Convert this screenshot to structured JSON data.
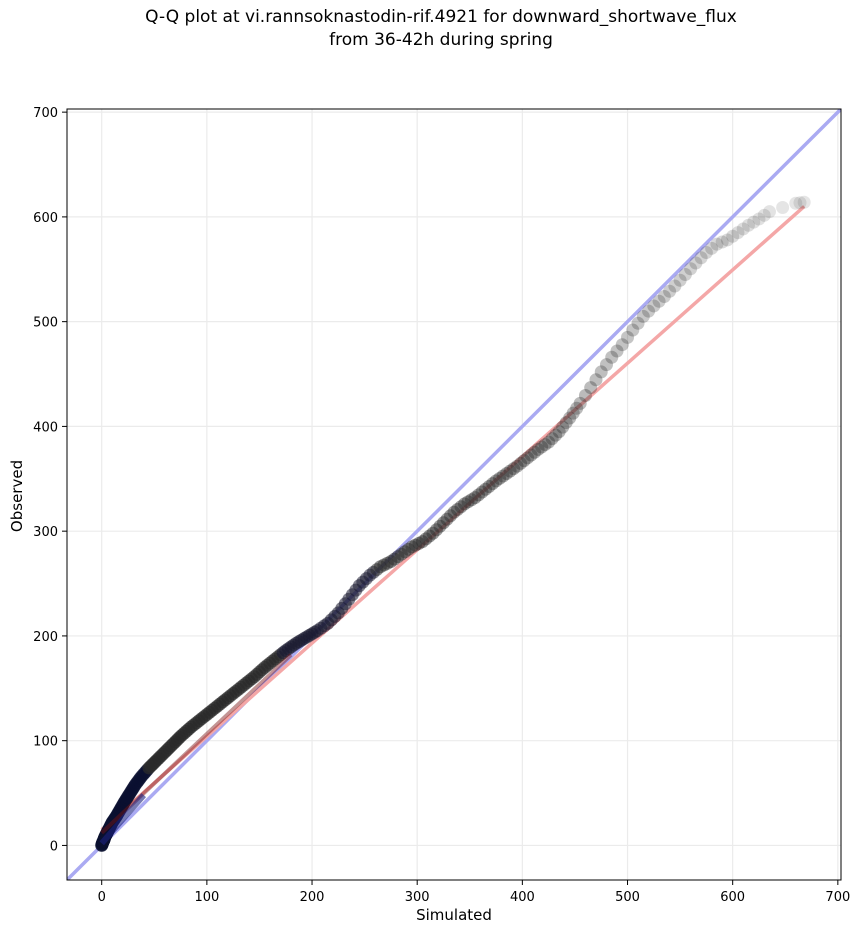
{
  "title_lines": [
    "Q-Q plot at vi.rannsoknastodin-rif.4921 for downward_shortwave_flux",
    "from 36-42h during spring"
  ],
  "colors": {
    "identity_line": "#aaaaf2",
    "fit_line": "#f4a7a7",
    "points_fill": "#2a2a2a",
    "grid": "#ebebeb"
  },
  "chart_data": {
    "type": "scatter",
    "xlabel": "Simulated",
    "ylabel": "Observed",
    "xlim": [
      -33,
      703
    ],
    "ylim": [
      -33,
      703
    ],
    "x_ticks": [
      0,
      100,
      200,
      300,
      400,
      500,
      600,
      700
    ],
    "y_ticks": [
      0,
      100,
      200,
      300,
      400,
      500,
      600,
      700
    ],
    "grid": true,
    "reference_line": {
      "name": "identity",
      "from": [
        -33,
        -33
      ],
      "to": [
        703,
        703
      ]
    },
    "fit_line": {
      "from": [
        0,
        15
      ],
      "to": [
        668,
        610
      ]
    },
    "series": [
      {
        "points_description": "sample quantiles (simulated vs observed)",
        "x": [
          0,
          1,
          2,
          3,
          5,
          7,
          10,
          14,
          18,
          22,
          27,
          32,
          38,
          45,
          52,
          60,
          68,
          76,
          85,
          95,
          105,
          115,
          125,
          135,
          145,
          155,
          165,
          175,
          185,
          195,
          205,
          215,
          225,
          235,
          245,
          255,
          265,
          275,
          285,
          295,
          305,
          315,
          325,
          335,
          345,
          355,
          365,
          375,
          385,
          395,
          405,
          415,
          425,
          435,
          445,
          455,
          465,
          475,
          485,
          495,
          505,
          515,
          525,
          535,
          545,
          555,
          565,
          575,
          585,
          595,
          605,
          615,
          625,
          635,
          660,
          668
        ],
        "y": [
          0,
          3,
          5,
          8,
          12,
          16,
          22,
          28,
          35,
          42,
          50,
          58,
          66,
          74,
          81,
          89,
          97,
          105,
          113,
          121,
          129,
          137,
          145,
          153,
          161,
          170,
          178,
          186,
          193,
          199,
          205,
          212,
          222,
          235,
          248,
          258,
          266,
          271,
          278,
          285,
          290,
          298,
          308,
          318,
          326,
          332,
          340,
          348,
          355,
          362,
          370,
          378,
          385,
          395,
          408,
          422,
          437,
          452,
          466,
          478,
          492,
          505,
          515,
          524,
          534,
          545,
          556,
          566,
          574,
          578,
          585,
          592,
          598,
          605,
          613,
          614
        ]
      }
    ]
  }
}
